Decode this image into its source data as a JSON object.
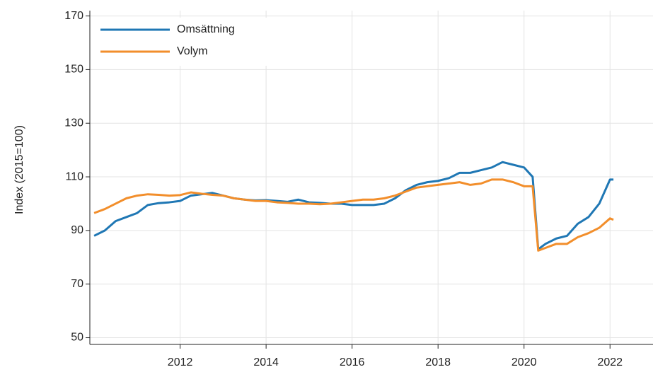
{
  "chart_data": {
    "type": "line",
    "y_label": "Index (2015=100)",
    "x": [
      2010.0,
      2010.25,
      2010.5,
      2010.75,
      2011.0,
      2011.25,
      2011.5,
      2011.75,
      2012.0,
      2012.25,
      2012.5,
      2012.75,
      2013.0,
      2013.25,
      2013.5,
      2013.75,
      2014.0,
      2014.25,
      2014.5,
      2014.75,
      2015.0,
      2015.25,
      2015.5,
      2015.75,
      2016.0,
      2016.25,
      2016.5,
      2016.75,
      2017.0,
      2017.25,
      2017.5,
      2017.75,
      2018.0,
      2018.25,
      2018.5,
      2018.75,
      2019.0,
      2019.25,
      2019.5,
      2019.75,
      2020.0,
      2020.2,
      2020.33,
      2020.5,
      2020.75,
      2021.0,
      2021.25,
      2021.5,
      2021.75,
      2022.0,
      2022.08
    ],
    "series": [
      {
        "name": "Omsättning",
        "color": "#1f77b4",
        "values": [
          88,
          90,
          93.5,
          95,
          96.5,
          99.5,
          100.2,
          100.5,
          101,
          103,
          103.5,
          104,
          103,
          102,
          101.5,
          101.2,
          101.3,
          101,
          100.7,
          101.5,
          100.5,
          100.3,
          100,
          100,
          99.5,
          99.5,
          99.5,
          100,
          102,
          105,
          107,
          108,
          108.5,
          109.5,
          111.5,
          111.5,
          112.5,
          113.5,
          115.5,
          114.5,
          113.5,
          110,
          83,
          85,
          87,
          88,
          92.5,
          95,
          100,
          109,
          109
        ]
      },
      {
        "name": "Volym",
        "color": "#f28e2b",
        "values": [
          96.5,
          98,
          100,
          102,
          103,
          103.5,
          103.3,
          103,
          103.2,
          104.2,
          103.7,
          103.3,
          103,
          102,
          101.5,
          101,
          101,
          100.5,
          100.3,
          100,
          100,
          99.8,
          100,
          100.5,
          101,
          101.5,
          101.5,
          102,
          103,
          104.5,
          106,
          106.5,
          107,
          107.5,
          108,
          107,
          107.5,
          109,
          109,
          108,
          106.5,
          106.5,
          82.5,
          83.5,
          85,
          85,
          87.5,
          89,
          91,
          94.5,
          94
        ]
      }
    ],
    "xlim": [
      2009.9,
      2023.0
    ],
    "xticks": [
      2012,
      2014,
      2016,
      2018,
      2020,
      2022
    ],
    "ylim": [
      47.5,
      172
    ],
    "yticks": [
      50,
      70,
      90,
      110,
      130,
      150,
      170
    ],
    "grid": true,
    "legend": "upper left"
  }
}
